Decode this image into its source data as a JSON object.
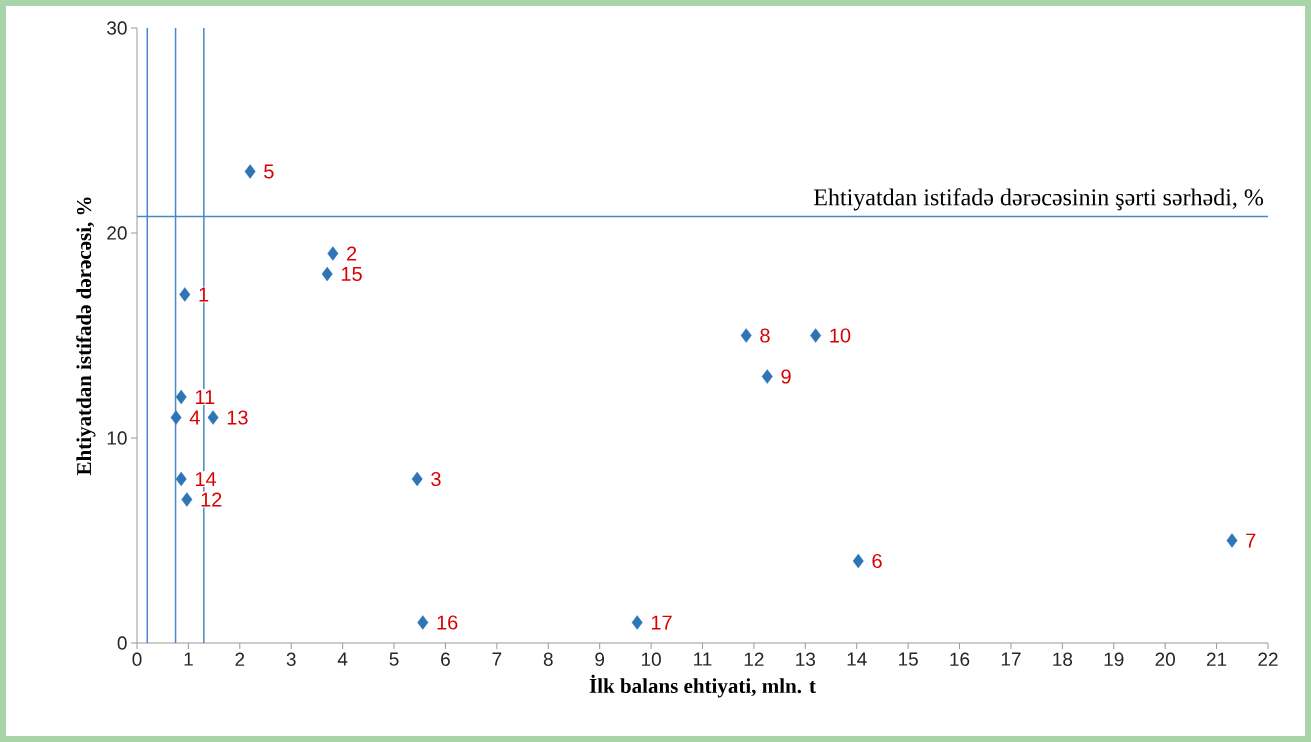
{
  "chart_data": {
    "type": "scatter",
    "xlabel": "İlk balans ehtiyati, mln. t",
    "ylabel": "Ehtiyatdan  istifadə  dərəcəsi, %",
    "x": [
      0.93,
      3.81,
      5.45,
      0.76,
      2.2,
      14.03,
      21.3,
      11.85,
      12.26,
      13.2,
      0.86,
      0.97,
      1.48,
      0.86,
      3.7,
      5.56,
      9.73
    ],
    "values": [
      17,
      19,
      8,
      11,
      23,
      4,
      5,
      15,
      13,
      15,
      12,
      7,
      11,
      8,
      18,
      1,
      1
    ],
    "color": "#2e75b6",
    "marker": "diamond",
    "xlim": [
      0,
      22
    ],
    "ylim": [
      0,
      30
    ],
    "xticks": [
      0,
      1,
      2,
      3,
      4,
      5,
      6,
      7,
      8,
      9,
      10,
      11,
      12,
      13,
      14,
      15,
      16,
      17,
      18,
      19,
      20,
      21,
      22
    ],
    "yticks": [
      0,
      10,
      20,
      30
    ],
    "ref_lines": [
      {
        "axis": "y",
        "value": 20.8,
        "label": "Ehtiyatdan istifadə dərəcəsinin şərti sərhədi, %",
        "color": "#4a86c8"
      },
      {
        "axis": "x",
        "value": 0.2,
        "color": "#4a86c8"
      },
      {
        "axis": "x",
        "value": 0.75,
        "color": "#4a86c8"
      },
      {
        "axis": "x",
        "value": 1.3,
        "color": "#4a86c8"
      }
    ],
    "annotations": [
      {
        "text": "1",
        "x": 0.93,
        "y": 17
      },
      {
        "text": "2",
        "x": 3.81,
        "y": 19
      },
      {
        "text": "3",
        "x": 5.45,
        "y": 8
      },
      {
        "text": "4",
        "x": 0.76,
        "y": 11
      },
      {
        "text": "5",
        "x": 2.2,
        "y": 23
      },
      {
        "text": "6",
        "x": 14.03,
        "y": 4
      },
      {
        "text": "7",
        "x": 21.3,
        "y": 5
      },
      {
        "text": "8",
        "x": 11.85,
        "y": 15
      },
      {
        "text": "9",
        "x": 12.26,
        "y": 13
      },
      {
        "text": "10",
        "x": 13.2,
        "y": 15
      },
      {
        "text": "11",
        "x": 0.86,
        "y": 12
      },
      {
        "text": "12",
        "x": 0.97,
        "y": 7
      },
      {
        "text": "13",
        "x": 1.48,
        "y": 11
      },
      {
        "text": "14",
        "x": 0.86,
        "y": 8
      },
      {
        "text": "15",
        "x": 3.7,
        "y": 18
      },
      {
        "text": "16",
        "x": 5.56,
        "y": 1
      },
      {
        "text": "17",
        "x": 9.73,
        "y": 1
      }
    ]
  }
}
